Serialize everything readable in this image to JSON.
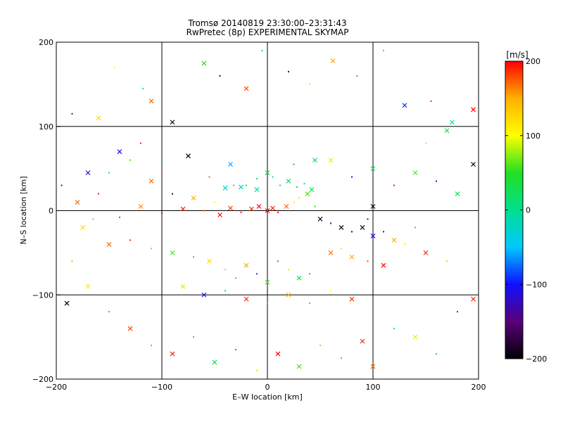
{
  "title": "Tromsø 20140819 23:30:00–23:31:43",
  "subtitle": "RwPretec (8p) EXPERIMENTAL SKYMAP",
  "chart_data": {
    "type": "scatter",
    "xlabel": "E–W location [km]",
    "ylabel": "N–S location [km]",
    "xlim": [
      -200,
      200
    ],
    "ylim": [
      -200,
      200
    ],
    "x_ticks": [
      -200,
      -100,
      0,
      100,
      200
    ],
    "y_ticks": [
      -200,
      -100,
      0,
      100,
      200
    ],
    "grid": true,
    "marker_styles": [
      "dot",
      "cross"
    ],
    "colorbar": {
      "label": "[m/s]",
      "range": [
        -200,
        200
      ],
      "ticks": [
        200,
        100,
        0,
        -100,
        -200
      ],
      "colormap": [
        "#000000",
        "#5a007a",
        "#1010ff",
        "#00c8ff",
        "#00e090",
        "#20e020",
        "#ffff00",
        "#ffb000",
        "#ff0000"
      ]
    },
    "points": [
      [
        -185,
        115,
        -150,
        "dot"
      ],
      [
        -160,
        110,
        120,
        "cross"
      ],
      [
        -145,
        170,
        100,
        "dot"
      ],
      [
        -118,
        145,
        20,
        "dot"
      ],
      [
        -110,
        130,
        170,
        "cross"
      ],
      [
        -90,
        105,
        -190,
        "cross"
      ],
      [
        -60,
        175,
        40,
        "cross"
      ],
      [
        -45,
        160,
        -180,
        "dot"
      ],
      [
        -20,
        145,
        180,
        "cross"
      ],
      [
        -5,
        190,
        30,
        "dot"
      ],
      [
        20,
        165,
        -170,
        "dot"
      ],
      [
        40,
        150,
        90,
        "dot"
      ],
      [
        62,
        178,
        150,
        "cross"
      ],
      [
        85,
        160,
        -60,
        "dot"
      ],
      [
        110,
        190,
        60,
        "dot"
      ],
      [
        130,
        125,
        -90,
        "cross"
      ],
      [
        155,
        130,
        190,
        "dot"
      ],
      [
        175,
        105,
        0,
        "cross"
      ],
      [
        195,
        120,
        200,
        "cross"
      ],
      [
        -140,
        70,
        -120,
        "cross"
      ],
      [
        -120,
        80,
        190,
        "dot"
      ],
      [
        -100,
        60,
        50,
        "dot"
      ],
      [
        -75,
        65,
        -200,
        "cross"
      ],
      [
        -55,
        40,
        170,
        "dot"
      ],
      [
        -35,
        55,
        -60,
        "cross"
      ],
      [
        -20,
        30,
        20,
        "dot"
      ],
      [
        -10,
        25,
        -10,
        "cross"
      ],
      [
        -8,
        5,
        200,
        "cross"
      ],
      [
        -15,
        2,
        185,
        "cross"
      ],
      [
        -25,
        -2,
        195,
        "dot"
      ],
      [
        -35,
        3,
        180,
        "cross"
      ],
      [
        -45,
        -5,
        200,
        "cross"
      ],
      [
        -60,
        0,
        175,
        "dot"
      ],
      [
        -80,
        2,
        190,
        "cross"
      ],
      [
        -100,
        -3,
        200,
        "dot"
      ],
      [
        -120,
        5,
        160,
        "cross"
      ],
      [
        -140,
        -8,
        185,
        "dot"
      ],
      [
        0,
        0,
        200,
        "cross"
      ],
      [
        5,
        3,
        190,
        "cross"
      ],
      [
        10,
        -2,
        200,
        "dot"
      ],
      [
        18,
        5,
        170,
        "cross"
      ],
      [
        25,
        10,
        120,
        "dot"
      ],
      [
        30,
        15,
        90,
        "dot"
      ],
      [
        38,
        20,
        60,
        "cross"
      ],
      [
        45,
        5,
        40,
        "dot"
      ],
      [
        12,
        30,
        40,
        "dot"
      ],
      [
        20,
        35,
        20,
        "cross"
      ],
      [
        28,
        28,
        10,
        "dot"
      ],
      [
        35,
        32,
        -20,
        "dot"
      ],
      [
        42,
        25,
        30,
        "cross"
      ],
      [
        -40,
        27,
        -30,
        "cross"
      ],
      [
        -32,
        30,
        -40,
        "dot"
      ],
      [
        -25,
        28,
        -20,
        "cross"
      ],
      [
        5,
        40,
        0,
        "dot"
      ],
      [
        0,
        45,
        30,
        "cross"
      ],
      [
        -10,
        38,
        10,
        "dot"
      ],
      [
        50,
        -10,
        -180,
        "cross"
      ],
      [
        60,
        -15,
        -150,
        "dot"
      ],
      [
        70,
        -20,
        -200,
        "cross"
      ],
      [
        80,
        -25,
        -170,
        "dot"
      ],
      [
        90,
        -20,
        -190,
        "cross"
      ],
      [
        95,
        -10,
        -120,
        "dot"
      ],
      [
        100,
        -30,
        -100,
        "cross"
      ],
      [
        110,
        -25,
        -150,
        "dot"
      ],
      [
        100,
        5,
        -200,
        "cross"
      ],
      [
        120,
        -35,
        150,
        "cross"
      ],
      [
        130,
        -40,
        110,
        "dot"
      ],
      [
        140,
        -20,
        30,
        "dot"
      ],
      [
        150,
        -50,
        190,
        "cross"
      ],
      [
        170,
        -60,
        80,
        "dot"
      ],
      [
        60,
        -50,
        170,
        "cross"
      ],
      [
        70,
        -45,
        120,
        "dot"
      ],
      [
        80,
        -55,
        150,
        "cross"
      ],
      [
        95,
        -60,
        180,
        "dot"
      ],
      [
        110,
        -65,
        200,
        "cross"
      ],
      [
        -150,
        -40,
        170,
        "cross"
      ],
      [
        -130,
        -35,
        190,
        "dot"
      ],
      [
        -110,
        -45,
        150,
        "dot"
      ],
      [
        -90,
        -50,
        60,
        "cross"
      ],
      [
        -70,
        -55,
        40,
        "dot"
      ],
      [
        -55,
        -60,
        120,
        "cross"
      ],
      [
        -40,
        -70,
        80,
        "dot"
      ],
      [
        -30,
        -80,
        20,
        "dot"
      ],
      [
        -20,
        -65,
        150,
        "cross"
      ],
      [
        -10,
        -75,
        -90,
        "dot"
      ],
      [
        0,
        -85,
        60,
        "cross"
      ],
      [
        10,
        -60,
        180,
        "dot"
      ],
      [
        20,
        -70,
        120,
        "dot"
      ],
      [
        30,
        -80,
        30,
        "cross"
      ],
      [
        40,
        -75,
        170,
        "dot"
      ],
      [
        -80,
        -90,
        90,
        "cross"
      ],
      [
        -60,
        -100,
        -100,
        "cross"
      ],
      [
        -40,
        -95,
        40,
        "dot"
      ],
      [
        -20,
        -105,
        190,
        "cross"
      ],
      [
        0,
        -110,
        20,
        "dot"
      ],
      [
        20,
        -100,
        150,
        "cross"
      ],
      [
        40,
        -110,
        -30,
        "dot"
      ],
      [
        60,
        -95,
        100,
        "dot"
      ],
      [
        80,
        -105,
        190,
        "cross"
      ],
      [
        -170,
        -90,
        110,
        "cross"
      ],
      [
        -150,
        -120,
        20,
        "dot"
      ],
      [
        -130,
        -140,
        180,
        "cross"
      ],
      [
        -110,
        -160,
        60,
        "dot"
      ],
      [
        -90,
        -170,
        190,
        "cross"
      ],
      [
        -70,
        -150,
        40,
        "dot"
      ],
      [
        -50,
        -180,
        30,
        "cross"
      ],
      [
        -30,
        -165,
        180,
        "dot"
      ],
      [
        -10,
        -190,
        120,
        "dot"
      ],
      [
        10,
        -170,
        200,
        "cross"
      ],
      [
        30,
        -185,
        60,
        "cross"
      ],
      [
        50,
        -160,
        150,
        "dot"
      ],
      [
        70,
        -175,
        -30,
        "dot"
      ],
      [
        90,
        -155,
        190,
        "cross"
      ],
      [
        100,
        -185,
        170,
        "cross"
      ],
      [
        120,
        -140,
        20,
        "dot"
      ],
      [
        140,
        -150,
        90,
        "cross"
      ],
      [
        160,
        -170,
        40,
        "dot"
      ],
      [
        180,
        -120,
        -90,
        "dot"
      ],
      [
        195,
        -105,
        190,
        "cross"
      ],
      [
        -190,
        -110,
        -200,
        "cross"
      ],
      [
        -185,
        -60,
        150,
        "dot"
      ],
      [
        -175,
        -20,
        120,
        "cross"
      ],
      [
        -160,
        20,
        190,
        "dot"
      ],
      [
        -150,
        45,
        40,
        "dot"
      ],
      [
        -170,
        45,
        -120,
        "cross"
      ],
      [
        -130,
        60,
        60,
        "dot"
      ],
      [
        -110,
        35,
        170,
        "cross"
      ],
      [
        -90,
        20,
        -180,
        "dot"
      ],
      [
        -70,
        15,
        150,
        "cross"
      ],
      [
        -50,
        10,
        100,
        "dot"
      ],
      [
        60,
        60,
        90,
        "cross"
      ],
      [
        80,
        40,
        -100,
        "dot"
      ],
      [
        100,
        50,
        20,
        "cross"
      ],
      [
        120,
        30,
        190,
        "dot"
      ],
      [
        140,
        45,
        60,
        "cross"
      ],
      [
        160,
        35,
        -120,
        "dot"
      ],
      [
        180,
        20,
        30,
        "cross"
      ],
      [
        195,
        55,
        -200,
        "cross"
      ],
      [
        150,
        80,
        120,
        "dot"
      ],
      [
        170,
        95,
        30,
        "cross"
      ],
      [
        -195,
        30,
        -150,
        "dot"
      ],
      [
        -180,
        10,
        170,
        "cross"
      ],
      [
        -165,
        -10,
        60,
        "dot"
      ],
      [
        45,
        60,
        20,
        "cross"
      ],
      [
        25,
        55,
        -60,
        "dot"
      ]
    ]
  }
}
